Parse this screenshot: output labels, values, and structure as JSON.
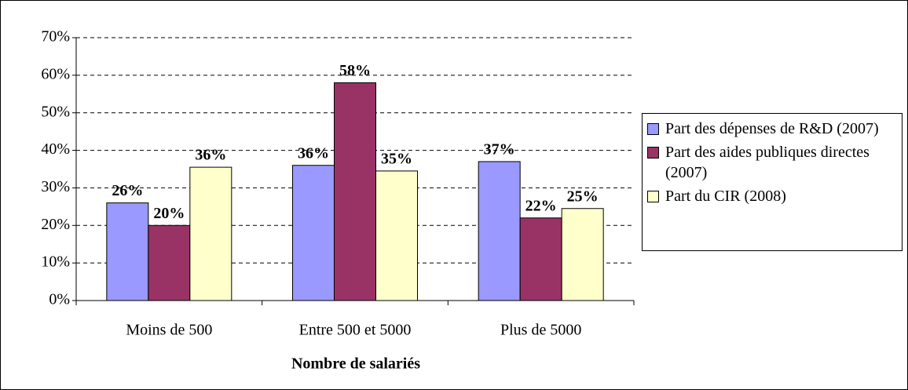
{
  "chart_data": {
    "type": "bar",
    "x_label": "Nombre de salariés",
    "categories": [
      "Moins de 500",
      "Entre 500 et 5000",
      "Plus de 5000"
    ],
    "series": [
      {
        "name": "Part des dépenses de R&D (2007)",
        "color": "#9999ff",
        "values": [
          26,
          36,
          37
        ],
        "value_labels": [
          "26%",
          "36%",
          "37%"
        ]
      },
      {
        "name": "Part des aides publiques directes (2007)",
        "color": "#993366",
        "values": [
          20,
          58,
          22
        ],
        "value_labels": [
          "20%",
          "58%",
          "22%"
        ]
      },
      {
        "name": "Part du CIR (2008)",
        "color": "#ffffcc",
        "values": [
          35.5,
          34.5,
          24.5
        ],
        "value_labels": [
          "36%",
          "35%",
          "25%"
        ]
      }
    ],
    "ylim": [
      0,
      70
    ],
    "yticks": [
      {
        "value": 0,
        "label": "0%"
      },
      {
        "value": 10,
        "label": "10%"
      },
      {
        "value": 20,
        "label": "20%"
      },
      {
        "value": 30,
        "label": "30%"
      },
      {
        "value": 40,
        "label": "40%"
      },
      {
        "value": 50,
        "label": "50%"
      },
      {
        "value": 60,
        "label": "60%"
      },
      {
        "value": 70,
        "label": "70%"
      }
    ],
    "grid": true,
    "legend": "right"
  }
}
